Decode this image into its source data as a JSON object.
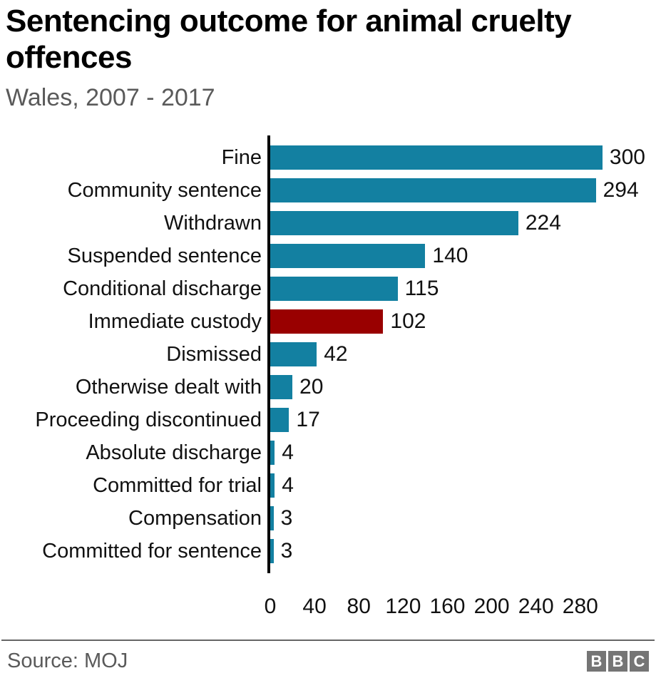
{
  "header": {
    "title": "Sentencing outcome for animal cruelty offences",
    "subtitle": "Wales, 2007 - 2017"
  },
  "chart_data": {
    "type": "bar",
    "orientation": "horizontal",
    "title": "Sentencing outcome for animal cruelty offences",
    "subtitle": "Wales, 2007 - 2017",
    "categories": [
      "Fine",
      "Community sentence",
      "Withdrawn",
      "Suspended sentence",
      "Conditional discharge",
      "Immediate custody",
      "Dismissed",
      "Otherwise dealt with",
      "Proceeding discontinued",
      "Absolute discharge",
      "Committed for trial",
      "Compensation",
      "Committed for sentence"
    ],
    "values": [
      300,
      294,
      224,
      140,
      115,
      102,
      42,
      20,
      17,
      4,
      4,
      3,
      3
    ],
    "highlight_index": 5,
    "bar_color": "#1380A1",
    "highlight_color": "#990000",
    "x_ticks": [
      0,
      40,
      80,
      120,
      160,
      200,
      240,
      280
    ],
    "xlim": [
      0,
      300
    ],
    "xlabel": "",
    "ylabel": "",
    "grid": false,
    "legend": false,
    "data_labels": true
  },
  "footer": {
    "source": "Source: MOJ",
    "logo_letters": [
      "B",
      "B",
      "C"
    ]
  }
}
